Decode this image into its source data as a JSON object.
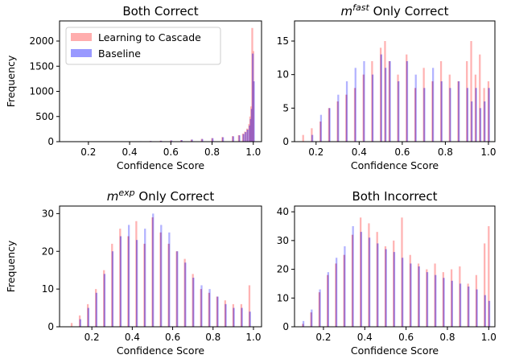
{
  "figure": {
    "legend": {
      "entries": [
        "Learning to Cascade",
        "Baseline"
      ],
      "placement": "upper-left of first panel"
    },
    "colors": {
      "learning_to_cascade": "#ff9999",
      "baseline": "#8080ff",
      "overlap": "#9b59b6"
    }
  },
  "chart_data": [
    {
      "type": "bar",
      "title": "Both Correct",
      "title_prefix": "",
      "title_sup": "",
      "title_suffix": "",
      "xlabel": "Confidence Score",
      "ylabel": "Frequency",
      "xlim": [
        0.06,
        1.04
      ],
      "ylim": [
        0,
        2400
      ],
      "xticks": [
        "0.2",
        "0.4",
        "0.6",
        "0.8",
        "1.0"
      ],
      "yticks": [
        "0",
        "500",
        "1000",
        "1500",
        "2000"
      ],
      "series": [
        {
          "name": "Learning to Cascade",
          "x": [
            0.4,
            0.45,
            0.5,
            0.55,
            0.6,
            0.65,
            0.7,
            0.75,
            0.8,
            0.85,
            0.9,
            0.93,
            0.95,
            0.96,
            0.97,
            0.98,
            0.985,
            0.99,
            0.995,
            1.0
          ],
          "y": [
            5,
            8,
            12,
            18,
            25,
            30,
            40,
            55,
            70,
            90,
            110,
            130,
            160,
            200,
            260,
            350,
            500,
            700,
            2260,
            1800
          ]
        },
        {
          "name": "Baseline",
          "x": [
            0.4,
            0.45,
            0.5,
            0.55,
            0.6,
            0.65,
            0.7,
            0.75,
            0.8,
            0.85,
            0.9,
            0.93,
            0.95,
            0.96,
            0.97,
            0.98,
            0.985,
            0.99,
            0.995,
            1.0
          ],
          "y": [
            6,
            9,
            13,
            17,
            24,
            32,
            42,
            52,
            68,
            88,
            105,
            125,
            150,
            190,
            240,
            320,
            450,
            650,
            1750,
            1200
          ]
        }
      ]
    },
    {
      "type": "bar",
      "title": "",
      "title_prefix": "m",
      "title_sup": "fast",
      "title_suffix": " Only Correct",
      "xlabel": "Confidence Score",
      "ylabel": "",
      "xlim": [
        0.1,
        1.03
      ],
      "ylim": [
        0,
        18
      ],
      "xticks": [
        "0.2",
        "0.4",
        "0.6",
        "0.8",
        "1.0"
      ],
      "yticks": [
        "0",
        "5",
        "10",
        "15"
      ],
      "series": [
        {
          "name": "Learning to Cascade",
          "x": [
            0.14,
            0.18,
            0.22,
            0.26,
            0.3,
            0.34,
            0.38,
            0.42,
            0.46,
            0.5,
            0.52,
            0.54,
            0.58,
            0.62,
            0.66,
            0.7,
            0.74,
            0.78,
            0.82,
            0.86,
            0.9,
            0.92,
            0.94,
            0.96,
            0.98,
            1.0
          ],
          "y": [
            1,
            2,
            3,
            5,
            6,
            7,
            8,
            10,
            12,
            14,
            15,
            12,
            10,
            13,
            8,
            11,
            9,
            12,
            10,
            9,
            12,
            15,
            10,
            13,
            8,
            9
          ]
        },
        {
          "name": "Baseline",
          "x": [
            0.14,
            0.18,
            0.22,
            0.26,
            0.3,
            0.34,
            0.38,
            0.42,
            0.46,
            0.5,
            0.52,
            0.54,
            0.58,
            0.62,
            0.66,
            0.7,
            0.74,
            0.78,
            0.82,
            0.86,
            0.9,
            0.92,
            0.94,
            0.96,
            0.98,
            1.0
          ],
          "y": [
            0,
            1,
            4,
            5,
            7,
            9,
            11,
            12,
            10,
            13,
            11,
            12,
            9,
            12,
            10,
            8,
            11,
            9,
            8,
            9,
            8,
            6,
            8,
            5,
            6,
            8
          ]
        }
      ]
    },
    {
      "type": "bar",
      "title": "",
      "title_prefix": "m",
      "title_sup": "exp",
      "title_suffix": " Only Correct",
      "xlabel": "Confidence Score",
      "ylabel": "Frequency",
      "xlim": [
        0.04,
        1.04
      ],
      "ylim": [
        0,
        32
      ],
      "xticks": [
        "0.2",
        "0.4",
        "0.6",
        "0.8",
        "1.0"
      ],
      "yticks": [
        "0",
        "10",
        "20",
        "30"
      ],
      "series": [
        {
          "name": "Learning to Cascade",
          "x": [
            0.1,
            0.14,
            0.18,
            0.22,
            0.26,
            0.3,
            0.34,
            0.38,
            0.42,
            0.46,
            0.5,
            0.54,
            0.58,
            0.62,
            0.66,
            0.7,
            0.74,
            0.78,
            0.82,
            0.86,
            0.9,
            0.94,
            0.98
          ],
          "y": [
            1,
            3,
            6,
            10,
            15,
            22,
            26,
            24,
            28,
            22,
            29,
            25,
            22,
            20,
            18,
            14,
            10,
            9,
            8,
            7,
            6,
            6,
            11
          ]
        },
        {
          "name": "Baseline",
          "x": [
            0.1,
            0.14,
            0.18,
            0.22,
            0.26,
            0.3,
            0.34,
            0.38,
            0.42,
            0.46,
            0.5,
            0.54,
            0.58,
            0.62,
            0.66,
            0.7,
            0.74,
            0.78,
            0.82,
            0.86,
            0.9,
            0.94,
            0.98
          ],
          "y": [
            0,
            2,
            5,
            9,
            14,
            20,
            24,
            27,
            23,
            26,
            30,
            27,
            25,
            20,
            17,
            13,
            11,
            10,
            8,
            6,
            5,
            5,
            4
          ]
        }
      ]
    },
    {
      "type": "bar",
      "title": "Both Incorrect",
      "title_prefix": "",
      "title_sup": "",
      "title_suffix": "",
      "xlabel": "Confidence Score",
      "ylabel": "",
      "xlim": [
        0.06,
        1.03
      ],
      "ylim": [
        0,
        42
      ],
      "xticks": [
        "0.2",
        "0.4",
        "0.6",
        "0.8",
        "1.0"
      ],
      "yticks": [
        "0",
        "10",
        "20",
        "30",
        "40"
      ],
      "series": [
        {
          "name": "Learning to Cascade",
          "x": [
            0.1,
            0.14,
            0.18,
            0.22,
            0.26,
            0.3,
            0.34,
            0.38,
            0.42,
            0.46,
            0.5,
            0.54,
            0.58,
            0.62,
            0.66,
            0.7,
            0.74,
            0.78,
            0.82,
            0.86,
            0.9,
            0.94,
            0.98,
            1.0
          ],
          "y": [
            1,
            5,
            12,
            18,
            22,
            25,
            32,
            38,
            36,
            33,
            28,
            30,
            38,
            25,
            22,
            20,
            22,
            19,
            20,
            21,
            15,
            18,
            29,
            35
          ]
        },
        {
          "name": "Baseline",
          "x": [
            0.1,
            0.14,
            0.18,
            0.22,
            0.26,
            0.3,
            0.34,
            0.38,
            0.42,
            0.46,
            0.5,
            0.54,
            0.58,
            0.62,
            0.66,
            0.7,
            0.74,
            0.78,
            0.82,
            0.86,
            0.9,
            0.94,
            0.98,
            1.0
          ],
          "y": [
            2,
            6,
            13,
            19,
            24,
            28,
            35,
            33,
            31,
            29,
            27,
            26,
            24,
            22,
            21,
            19,
            18,
            17,
            16,
            15,
            14,
            13,
            11,
            9
          ]
        }
      ]
    }
  ]
}
